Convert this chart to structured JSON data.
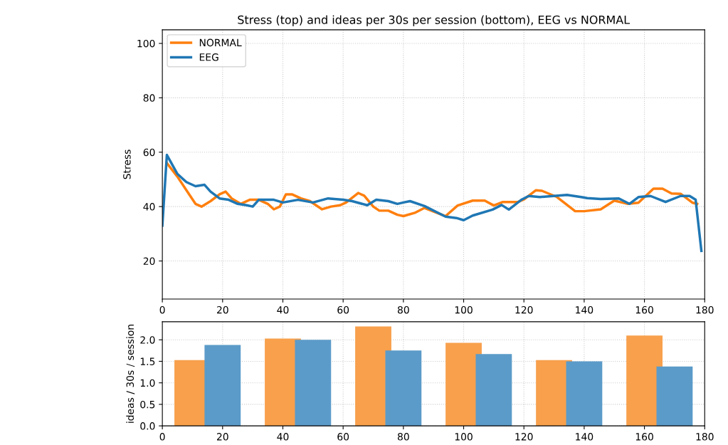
{
  "chart_data": [
    {
      "type": "line",
      "title": "Stress (top) and ideas per 30s per session (bottom), EEG vs NORMAL",
      "ylabel": "Stress",
      "xlim": [
        0,
        180
      ],
      "xticks": [
        0,
        20,
        40,
        60,
        80,
        100,
        120,
        140,
        160,
        180
      ],
      "ylim": [
        6,
        105
      ],
      "yticks": [
        20,
        40,
        60,
        80,
        100
      ],
      "grid": true,
      "legend": "top left",
      "series": [
        {
          "name": "NORMAL",
          "color": "#ff7f0e",
          "x": [
            1.5,
            5,
            8,
            11,
            13,
            16,
            19,
            21,
            23,
            26,
            29,
            32,
            35,
            37,
            39,
            41,
            43,
            46,
            49,
            53,
            56,
            59,
            61,
            65,
            67,
            70,
            72,
            75,
            78,
            80,
            84,
            87,
            94,
            98,
            103,
            107,
            110,
            113,
            118,
            120,
            124,
            126,
            131,
            137,
            140,
            145.5,
            150,
            154.5,
            158,
            163,
            166,
            169,
            172,
            176,
            177.5
          ],
          "values": [
            56,
            51,
            46,
            41,
            40,
            42,
            44.5,
            45.5,
            43,
            41,
            42.5,
            42.5,
            41,
            39,
            40,
            44.5,
            44.5,
            43,
            42,
            39,
            40,
            40.5,
            41.5,
            45,
            44,
            40,
            38.5,
            38.5,
            37,
            36.5,
            37.8,
            39.5,
            36.5,
            40.4,
            42.2,
            42.2,
            40.4,
            41.7,
            41.7,
            42.6,
            46,
            45.8,
            43.5,
            38.3,
            38.3,
            39,
            42.2,
            41,
            41.4,
            46.6,
            46.6,
            44.8,
            44.7,
            41.4,
            41
          ]
        },
        {
          "name": "EEG",
          "color": "#1f77b4",
          "x": [
            0,
            1.5,
            5,
            8,
            11,
            14,
            16,
            19,
            22,
            25,
            28,
            30,
            32,
            37,
            40,
            45,
            50,
            55,
            60,
            63,
            68,
            71,
            75,
            78,
            80,
            82.2,
            87,
            94,
            97.6,
            100,
            103,
            109.6,
            112.6,
            115,
            119.3,
            121.6,
            125.3,
            134.3,
            139,
            141,
            145.5,
            151.5,
            155,
            158,
            162,
            167,
            172,
            175,
            177,
            178.9
          ],
          "values": [
            33,
            59,
            52,
            49,
            47.5,
            48,
            45.5,
            43,
            42.5,
            41,
            40.5,
            40,
            42.5,
            42.5,
            41.5,
            42.5,
            41.5,
            43,
            42.5,
            42,
            40.5,
            42.5,
            42,
            41,
            41.5,
            42,
            40.2,
            36.3,
            35.8,
            35,
            36.7,
            38.9,
            40.6,
            38.9,
            42.6,
            43.9,
            43.5,
            44.3,
            43.5,
            43.1,
            42.8,
            43,
            41,
            43.5,
            43.9,
            41.7,
            43.9,
            43.9,
            42.5,
            23.7
          ]
        }
      ]
    },
    {
      "type": "bar",
      "ylabel": "ideas / 30s / session",
      "xlim": [
        0,
        180
      ],
      "xticks": [
        0,
        20,
        40,
        60,
        80,
        100,
        120,
        140,
        160,
        180
      ],
      "ylim": [
        0,
        2.42
      ],
      "yticks": [
        {
          "value": 0,
          "label": "0.0"
        },
        {
          "value": 0.5,
          "label": "0.5"
        },
        {
          "value": 1,
          "label": "1.0"
        },
        {
          "value": 1.5,
          "label": "1.5"
        },
        {
          "value": 2,
          "label": "2.0"
        }
      ],
      "grid": true,
      "series": [
        {
          "color": "#f8a04c",
          "x": [
            10,
            40,
            70,
            100,
            130,
            160
          ],
          "values": [
            1.53,
            2.03,
            2.31,
            1.93,
            1.53,
            2.1
          ]
        },
        {
          "color": "#5b9bc9",
          "x": [
            20,
            50,
            80,
            110,
            140,
            170
          ],
          "values": [
            1.88,
            2.0,
            1.75,
            1.67,
            1.5,
            1.38
          ]
        }
      ]
    }
  ]
}
